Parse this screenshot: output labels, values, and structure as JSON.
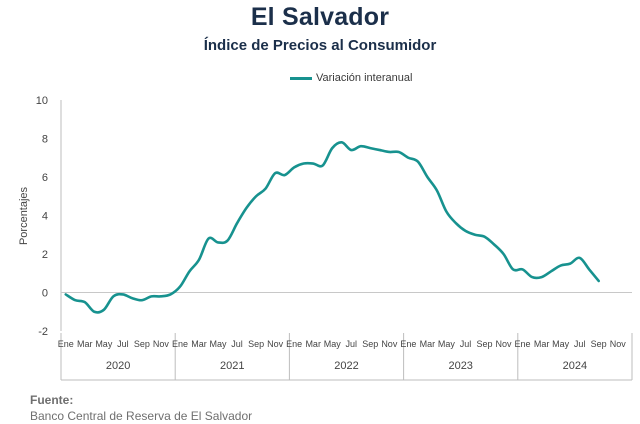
{
  "chart_data": {
    "type": "line",
    "title": "El Salvador",
    "subtitle": "Índice de Precios al Consumidor",
    "ylabel": "Porcentajes",
    "ylim": [
      -2,
      10
    ],
    "yticks": [
      -2,
      0,
      2,
      4,
      6,
      8,
      10
    ],
    "xtick_labels": [
      "Ene",
      "Mar",
      "May",
      "Jul",
      "Sep",
      "Nov"
    ],
    "years": [
      "2020",
      "2021",
      "2022",
      "2023",
      "2024"
    ],
    "legend_position": "top",
    "grid": false,
    "series": [
      {
        "name": "Variación interanual",
        "color": "#17928f",
        "x": [
          "2020-01",
          "2020-02",
          "2020-03",
          "2020-04",
          "2020-05",
          "2020-06",
          "2020-07",
          "2020-08",
          "2020-09",
          "2020-10",
          "2020-11",
          "2020-12",
          "2021-01",
          "2021-02",
          "2021-03",
          "2021-04",
          "2021-05",
          "2021-06",
          "2021-07",
          "2021-08",
          "2021-09",
          "2021-10",
          "2021-11",
          "2021-12",
          "2022-01",
          "2022-02",
          "2022-03",
          "2022-04",
          "2022-05",
          "2022-06",
          "2022-07",
          "2022-08",
          "2022-09",
          "2022-10",
          "2022-11",
          "2022-12",
          "2023-01",
          "2023-02",
          "2023-03",
          "2023-04",
          "2023-05",
          "2023-06",
          "2023-07",
          "2023-08",
          "2023-09",
          "2023-10",
          "2023-11",
          "2023-12",
          "2024-01",
          "2024-02",
          "2024-03",
          "2024-04",
          "2024-05",
          "2024-06",
          "2024-07",
          "2024-08",
          "2024-09"
        ],
        "values": [
          -0.1,
          -0.4,
          -0.5,
          -1.0,
          -0.9,
          -0.2,
          -0.1,
          -0.3,
          -0.4,
          -0.2,
          -0.2,
          -0.1,
          0.3,
          1.1,
          1.7,
          2.8,
          2.6,
          2.7,
          3.6,
          4.4,
          5.0,
          5.4,
          6.2,
          6.1,
          6.5,
          6.7,
          6.7,
          6.6,
          7.5,
          7.8,
          7.4,
          7.6,
          7.5,
          7.4,
          7.3,
          7.3,
          7.0,
          6.8,
          6.0,
          5.3,
          4.2,
          3.6,
          3.2,
          3.0,
          2.9,
          2.5,
          2.0,
          1.2,
          1.2,
          0.8,
          0.8,
          1.1,
          1.4,
          1.5,
          1.8,
          1.2,
          0.6
        ]
      }
    ]
  },
  "source": {
    "label": "Fuente:",
    "text": "Banco Central de Reserva de El Salvador"
  }
}
